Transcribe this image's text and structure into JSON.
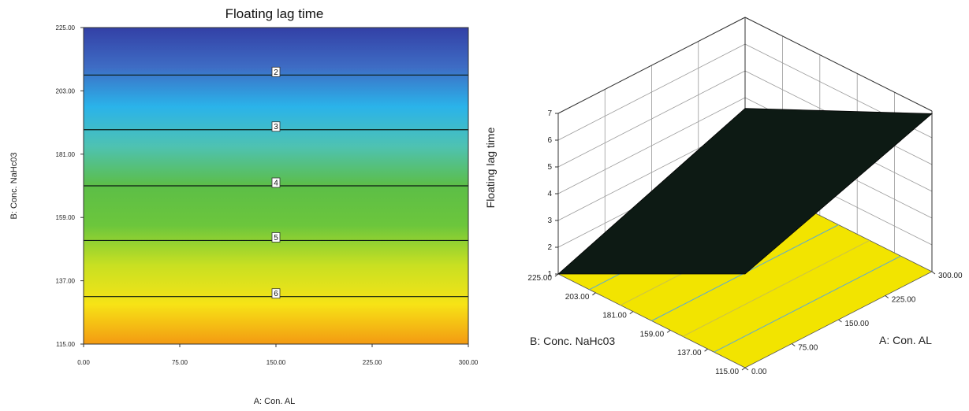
{
  "chart_data": [
    {
      "type": "contour",
      "title": "Floating lag time",
      "xlabel": "A: Con. AL",
      "ylabel": "B: Conc. NaHc03",
      "xlim": [
        0,
        300
      ],
      "ylim": [
        115,
        225
      ],
      "x_tick_labels": [
        "0.00",
        "75.00",
        "150.00",
        "225.00",
        "300.00"
      ],
      "y_tick_labels": [
        "115.00",
        "137.00",
        "159.00",
        "181.00",
        "203.00",
        "225.00"
      ],
      "contours": [
        {
          "level": "2",
          "y": 208.5
        },
        {
          "level": "3",
          "y": 189.5
        },
        {
          "level": "4",
          "y": 170.0
        },
        {
          "level": "5",
          "y": 151.0
        },
        {
          "level": "6",
          "y": 131.5
        }
      ],
      "colormap": [
        "#f39a12",
        "#f7e316",
        "#c8e022",
        "#6cc63c",
        "#5cbe47",
        "#4ec2b2",
        "#2ab3ea",
        "#3e6cc4",
        "#3340a6"
      ]
    },
    {
      "type": "surface",
      "xlabel": "A: Con. AL",
      "ylabel": "B: Conc. NaHc03",
      "zlabel": "Floating lag time",
      "xlim": [
        0,
        300
      ],
      "ylim": [
        115,
        225
      ],
      "zlim": [
        1,
        7
      ],
      "x_tick_labels": [
        "0.00",
        "75.00",
        "150.00",
        "225.00",
        "300.00"
      ],
      "y_tick_labels": [
        "115.00",
        "137.00",
        "159.00",
        "181.00",
        "203.00",
        "225.00"
      ],
      "z_tick_labels": [
        "1",
        "2",
        "3",
        "4",
        "5",
        "6",
        "7"
      ],
      "surface_corners": [
        {
          "a": 0,
          "b": 225,
          "z": 1.0
        },
        {
          "a": 300,
          "b": 225,
          "z": 3.6
        },
        {
          "a": 0,
          "b": 115,
          "z": 4.5
        },
        {
          "a": 300,
          "b": 115,
          "z": 6.9
        }
      ],
      "surface_color": "#0d1a14",
      "floor_color": "#f2e400"
    }
  ]
}
